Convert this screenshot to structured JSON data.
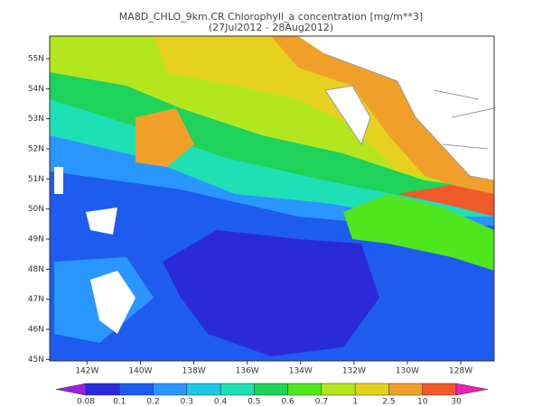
{
  "chart_data": {
    "type": "map",
    "title": "MA8D_CHLO_9km.CR Chlorophyll_a concentration [mg/m**3]",
    "subtitle": "(27Jul2012 - 28Aug2012)",
    "xlim": [
      -143.4,
      -126.75
    ],
    "ylim": [
      44.95,
      55.75
    ],
    "xticks": [
      {
        "value": -142,
        "label": "142W"
      },
      {
        "value": -140,
        "label": "140W"
      },
      {
        "value": -138,
        "label": "138W"
      },
      {
        "value": -136,
        "label": "136W"
      },
      {
        "value": -134,
        "label": "134W"
      },
      {
        "value": -132,
        "label": "132W"
      },
      {
        "value": -130,
        "label": "130W"
      },
      {
        "value": -128,
        "label": "128W"
      }
    ],
    "yticks": [
      {
        "value": 45,
        "label": "45N"
      },
      {
        "value": 46,
        "label": "46N"
      },
      {
        "value": 47,
        "label": "47N"
      },
      {
        "value": 48,
        "label": "48N"
      },
      {
        "value": 49,
        "label": "49N"
      },
      {
        "value": 50,
        "label": "50N"
      },
      {
        "value": 51,
        "label": "51N"
      },
      {
        "value": 52,
        "label": "52N"
      },
      {
        "value": 53,
        "label": "53N"
      },
      {
        "value": 54,
        "label": "54N"
      },
      {
        "value": 55,
        "label": "55N"
      }
    ],
    "colorbar": {
      "levels": [
        0.08,
        0.1,
        0.2,
        0.3,
        0.4,
        0.5,
        0.6,
        0.7,
        1,
        2.5,
        10,
        30
      ],
      "colors": [
        "#9a1ee6",
        "#2a2ad8",
        "#1e5cf0",
        "#2a96ff",
        "#1ec8e6",
        "#1ee0b4",
        "#1ed25a",
        "#50e61e",
        "#b4e61e",
        "#e6d21e",
        "#f0a028",
        "#f05a28",
        "#f01eb4"
      ]
    }
  }
}
